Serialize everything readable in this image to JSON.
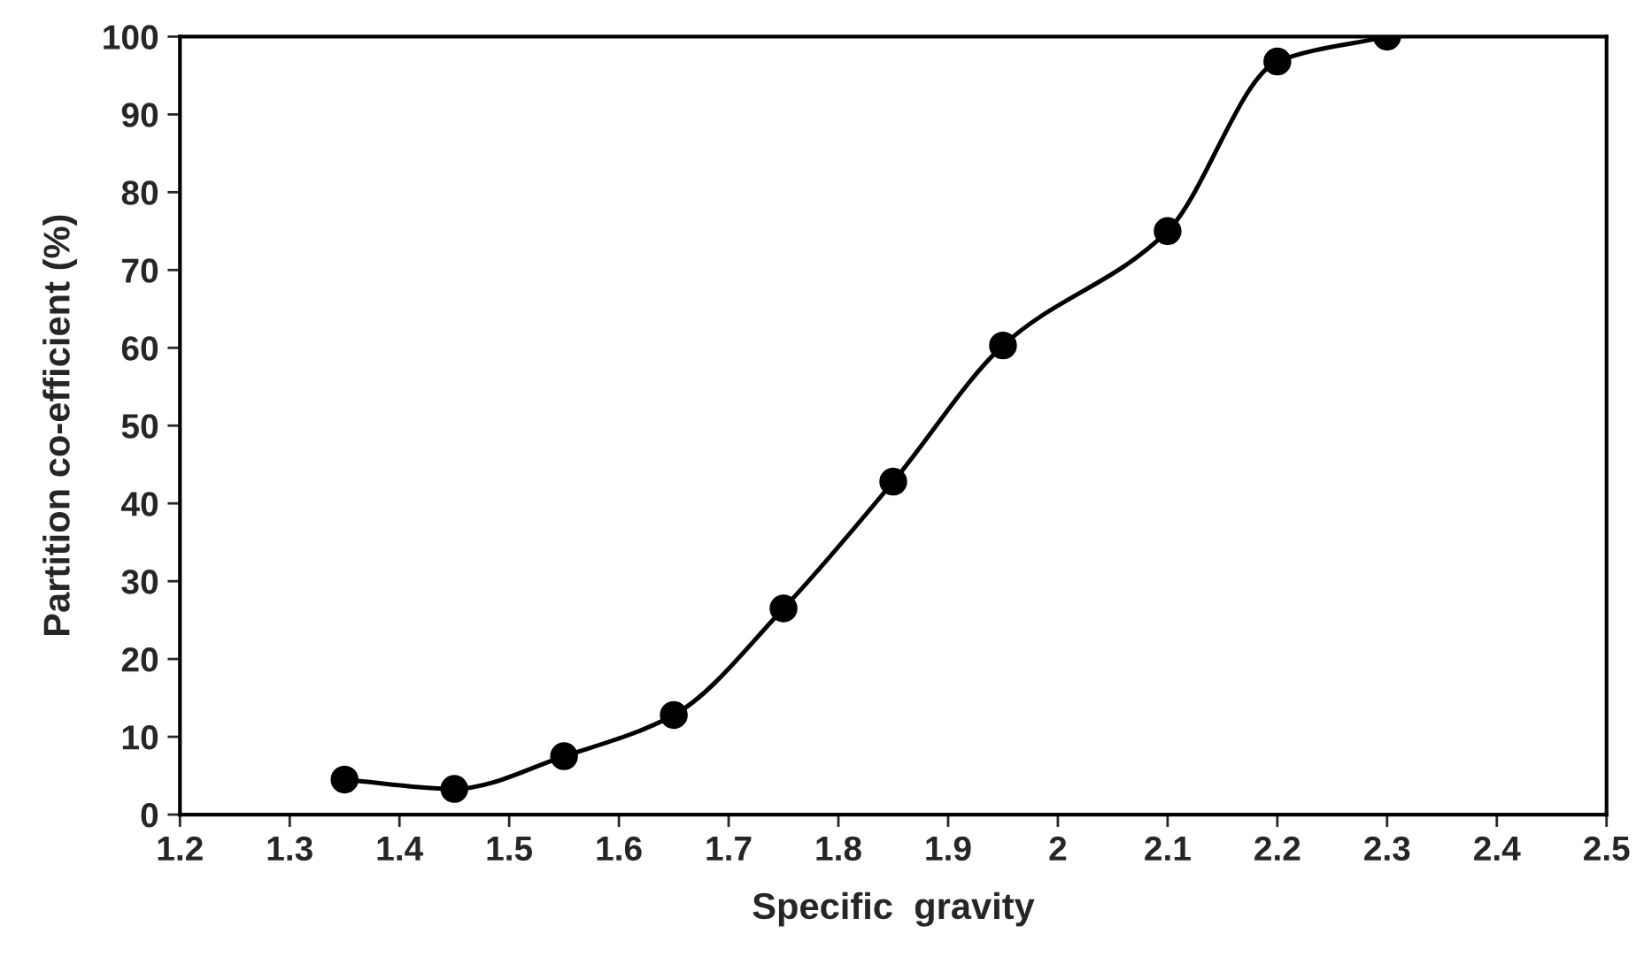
{
  "chart_data": {
    "type": "line",
    "xlabel": "Specific  gravity",
    "ylabel": "Partition co-efficient (%)",
    "x": [
      1.35,
      1.45,
      1.55,
      1.65,
      1.75,
      1.85,
      1.95,
      2.1,
      2.2,
      2.3
    ],
    "series": [
      {
        "color": "#000000",
        "values": [
          4.5,
          3.3,
          7.5,
          12.8,
          26.5,
          42.8,
          60.3,
          75,
          96.8,
          100
        ]
      }
    ],
    "marker": "circle",
    "line_style": "solid",
    "grid": false,
    "legend": false,
    "xlim": [
      1.2,
      2.5
    ],
    "xticks": [
      1.2,
      1.3,
      1.4,
      1.5,
      1.6,
      1.7,
      1.8,
      1.9,
      2,
      2.1,
      2.2,
      2.3,
      2.4,
      2.5
    ],
    "ylim": [
      0,
      100
    ],
    "yticks": [
      0,
      10,
      20,
      30,
      40,
      50,
      60,
      70,
      80,
      90,
      100
    ]
  }
}
